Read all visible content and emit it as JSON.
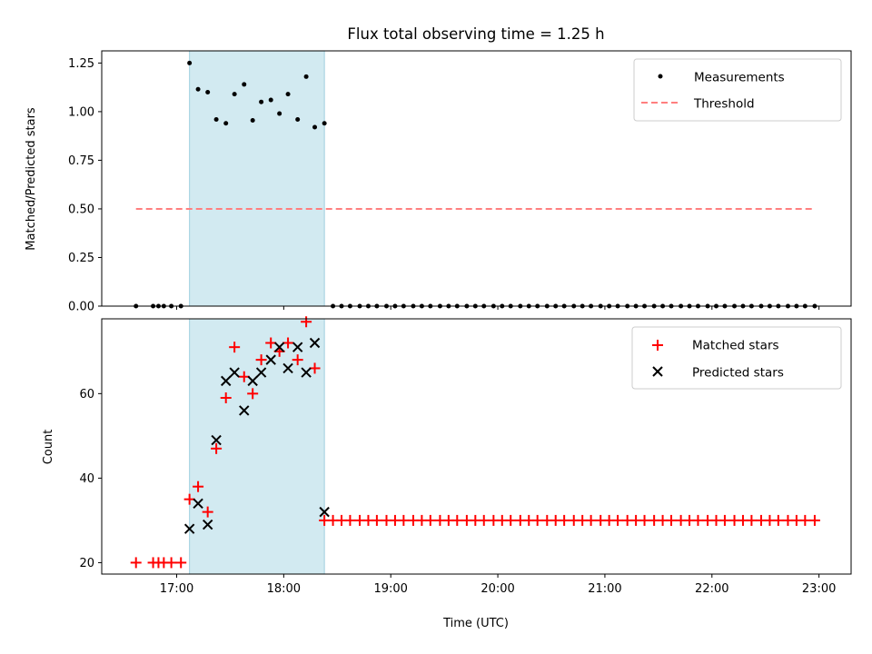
{
  "chart_data": [
    {
      "type": "scatter",
      "title": "Flux total observing time = 1.25 h",
      "xlabel": "",
      "ylabel": "Matched/Predicted stars",
      "xlim": [
        16.3,
        23.3
      ],
      "ylim": [
        0,
        1.3125
      ],
      "yticks": [
        0,
        0.25,
        0.5,
        0.75,
        1.0,
        1.25
      ],
      "ytick_labels": [
        "0.00",
        "0.25",
        "0.50",
        "0.75",
        "1.00",
        "1.25"
      ],
      "highlight_span": [
        17.12,
        18.38
      ],
      "legend_position": "top-right",
      "series": [
        {
          "name": "Measurements",
          "marker": "dot",
          "color": "#000000",
          "x": [
            16.62,
            16.78,
            16.83,
            16.88,
            16.95,
            17.04,
            17.12,
            17.2,
            17.29,
            17.37,
            17.46,
            17.54,
            17.63,
            17.71,
            17.79,
            17.88,
            17.96,
            18.04,
            18.13,
            18.21,
            18.29,
            18.38,
            18.46,
            18.54,
            18.62,
            18.71,
            18.79,
            18.87,
            18.96,
            19.04,
            19.12,
            19.21,
            19.29,
            19.37,
            19.46,
            19.54,
            19.62,
            19.71,
            19.79,
            19.87,
            19.96,
            20.04,
            20.12,
            20.21,
            20.29,
            20.37,
            20.46,
            20.54,
            20.62,
            20.71,
            20.79,
            20.87,
            20.96,
            21.04,
            21.12,
            21.21,
            21.29,
            21.37,
            21.46,
            21.54,
            21.62,
            21.71,
            21.79,
            21.87,
            21.96,
            22.04,
            22.12,
            22.21,
            22.29,
            22.37,
            22.46,
            22.54,
            22.62,
            22.71,
            22.79,
            22.87,
            22.96
          ],
          "values": [
            0,
            0,
            0,
            0,
            0,
            0,
            1.25,
            1.115,
            1.1,
            0.96,
            0.94,
            1.09,
            1.14,
            0.955,
            1.05,
            1.06,
            0.99,
            1.09,
            0.96,
            1.18,
            0.92,
            0.94,
            0,
            0,
            0,
            0,
            0,
            0,
            0,
            0,
            0,
            0,
            0,
            0,
            0,
            0,
            0,
            0,
            0,
            0,
            0,
            0,
            0,
            0,
            0,
            0,
            0,
            0,
            0,
            0,
            0,
            0,
            0,
            0,
            0,
            0,
            0,
            0,
            0,
            0,
            0,
            0,
            0,
            0,
            0,
            0,
            0,
            0,
            0,
            0,
            0,
            0,
            0,
            0,
            0,
            0,
            0
          ]
        },
        {
          "name": "Threshold",
          "marker": "dashed-line",
          "color": "#ff7f7f",
          "x": [
            16.62,
            22.96
          ],
          "values": [
            0.5,
            0.5
          ]
        }
      ]
    },
    {
      "type": "scatter",
      "title": "",
      "xlabel": "Time (UTC)",
      "ylabel": "Count",
      "xlim": [
        16.3,
        23.3
      ],
      "ylim": [
        17.3,
        77.7
      ],
      "yticks": [
        20,
        40,
        60
      ],
      "ytick_labels": [
        "20",
        "40",
        "60"
      ],
      "xticks": [
        17,
        18,
        19,
        20,
        21,
        22,
        23
      ],
      "xtick_labels": [
        "17:00",
        "18:00",
        "19:00",
        "20:00",
        "21:00",
        "22:00",
        "23:00"
      ],
      "highlight_span": [
        17.12,
        18.38
      ],
      "legend_position": "top-right",
      "series": [
        {
          "name": "Matched stars",
          "marker": "plus",
          "color": "#ff0000",
          "x": [
            16.62,
            16.78,
            16.83,
            16.88,
            16.95,
            17.04,
            17.12,
            17.2,
            17.29,
            17.37,
            17.46,
            17.54,
            17.63,
            17.71,
            17.79,
            17.88,
            17.96,
            18.04,
            18.13,
            18.21,
            18.29,
            18.38,
            18.46,
            18.54,
            18.62,
            18.71,
            18.79,
            18.87,
            18.96,
            19.04,
            19.12,
            19.21,
            19.29,
            19.37,
            19.46,
            19.54,
            19.62,
            19.71,
            19.79,
            19.87,
            19.96,
            20.04,
            20.12,
            20.21,
            20.29,
            20.37,
            20.46,
            20.54,
            20.62,
            20.71,
            20.79,
            20.87,
            20.96,
            21.04,
            21.12,
            21.21,
            21.29,
            21.37,
            21.46,
            21.54,
            21.62,
            21.71,
            21.79,
            21.87,
            21.96,
            22.04,
            22.12,
            22.21,
            22.29,
            22.37,
            22.46,
            22.54,
            22.62,
            22.71,
            22.79,
            22.87,
            22.96
          ],
          "values": [
            20,
            20,
            20,
            20,
            20,
            20,
            35,
            38,
            32,
            47,
            59,
            71,
            64,
            60,
            68,
            72,
            70,
            72,
            68,
            77,
            66,
            30,
            30,
            30,
            30,
            30,
            30,
            30,
            30,
            30,
            30,
            30,
            30,
            30,
            30,
            30,
            30,
            30,
            30,
            30,
            30,
            30,
            30,
            30,
            30,
            30,
            30,
            30,
            30,
            30,
            30,
            30,
            30,
            30,
            30,
            30,
            30,
            30,
            30,
            30,
            30,
            30,
            30,
            30,
            30,
            30,
            30,
            30,
            30,
            30,
            30,
            30,
            30,
            30,
            30,
            30,
            30
          ]
        },
        {
          "name": "Predicted stars",
          "marker": "x",
          "color": "#000000",
          "x": [
            17.12,
            17.2,
            17.29,
            17.37,
            17.46,
            17.54,
            17.63,
            17.71,
            17.79,
            17.88,
            17.96,
            18.04,
            18.13,
            18.21,
            18.29,
            18.38
          ],
          "values": [
            28,
            34,
            29,
            49,
            63,
            65,
            56,
            63,
            65,
            68,
            71,
            66,
            71,
            65,
            72,
            32
          ]
        }
      ]
    }
  ]
}
